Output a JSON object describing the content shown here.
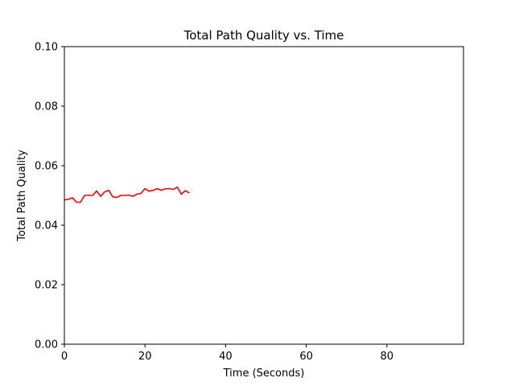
{
  "chart_data": {
    "type": "line",
    "title": "Total Path Quality vs. Time",
    "xlabel": "Time (Seconds)",
    "ylabel": "Total Path Quality",
    "xlim": [
      0,
      99
    ],
    "ylim": [
      0,
      0.1
    ],
    "x_ticks": [
      0,
      20,
      40,
      60,
      80
    ],
    "x_tick_labels": [
      "0",
      "20",
      "40",
      "60",
      "80"
    ],
    "y_ticks": [
      0,
      0.02,
      0.04,
      0.06,
      0.08,
      0.1
    ],
    "y_tick_labels": [
      "0.00",
      "0.02",
      "0.04",
      "0.06",
      "0.08",
      "0.10"
    ],
    "grid": false,
    "series": [
      {
        "color": "#ff0000",
        "x": [
          0,
          1,
          2,
          3,
          4,
          5,
          6,
          7,
          8,
          9,
          10,
          11,
          12,
          13,
          14,
          15,
          16,
          17,
          18,
          19,
          20,
          21,
          22,
          23,
          24,
          25,
          26,
          27,
          28,
          29,
          30,
          31
        ],
        "y": [
          0.0485,
          0.0487,
          0.0492,
          0.0477,
          0.0477,
          0.05,
          0.05,
          0.05,
          0.0515,
          0.0497,
          0.0512,
          0.0517,
          0.0495,
          0.0493,
          0.05,
          0.05,
          0.0501,
          0.0497,
          0.0504,
          0.0507,
          0.0523,
          0.0514,
          0.0517,
          0.0523,
          0.0517,
          0.0522,
          0.0523,
          0.052,
          0.0528,
          0.0504,
          0.0516,
          0.0508
        ]
      }
    ]
  }
}
